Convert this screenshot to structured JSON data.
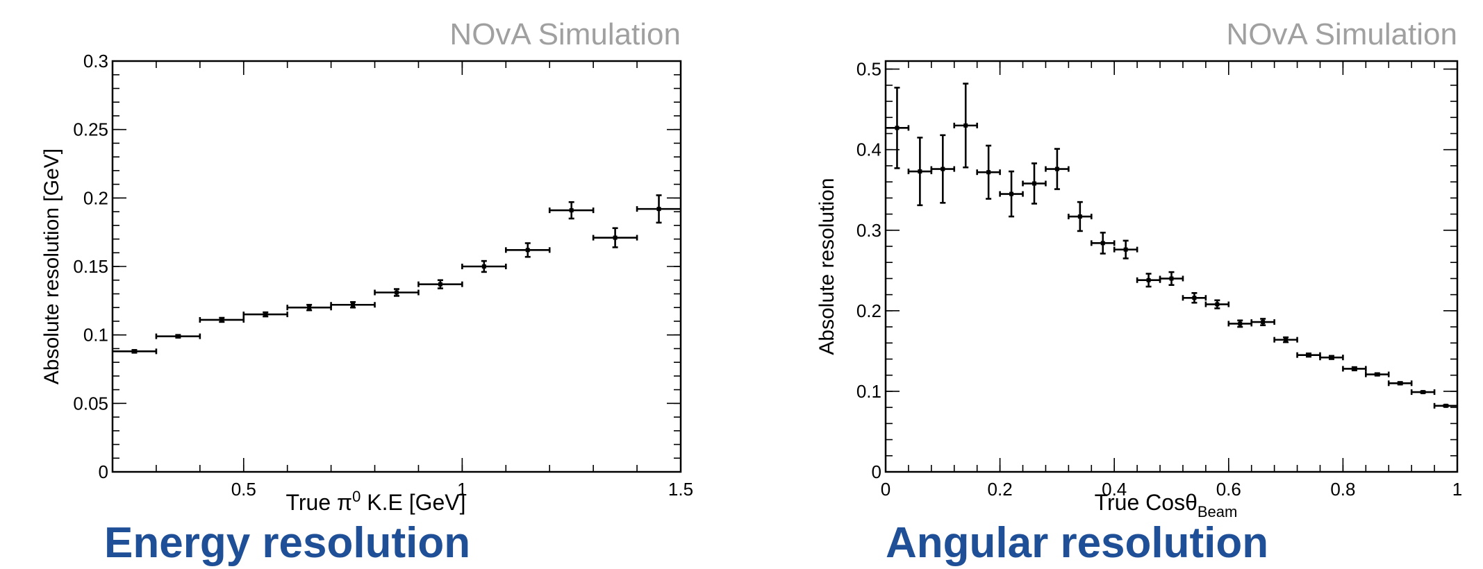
{
  "captions": {
    "left": "Energy resolution",
    "right": "Angular resolution"
  },
  "colors": {
    "caption": "#1f4f96",
    "watermark": "#a0a0a0",
    "marks": "#000000"
  },
  "chart_data": [
    {
      "type": "scatter",
      "style": "error-bars",
      "watermark": "NOvA Simulation",
      "title": "",
      "xlabel": {
        "prefix": "True ",
        "symbol": "π",
        "sup": "0",
        "suffix": " K.E [GeV]"
      },
      "ylabel": "Absolute resolution [GeV]",
      "xlim": [
        0.2,
        1.5
      ],
      "ylim": [
        0,
        0.3
      ],
      "xticks": [
        {
          "value": 0.5,
          "label": "0.5"
        },
        {
          "value": 1,
          "label": "1"
        },
        {
          "value": 1.5,
          "label": "1.5"
        }
      ],
      "yticks": [
        {
          "value": 0,
          "label": "0"
        },
        {
          "value": 0.05,
          "label": "0.05"
        },
        {
          "value": 0.1,
          "label": "0.1"
        },
        {
          "value": 0.15,
          "label": "0.15"
        },
        {
          "value": 0.2,
          "label": "0.2"
        },
        {
          "value": 0.25,
          "label": "0.25"
        },
        {
          "value": 0.3,
          "label": "0.3"
        }
      ],
      "x_minor_step": 0.1,
      "y_minor_step": 0.01,
      "grid": false,
      "points": [
        {
          "x": 0.25,
          "xerr": 0.05,
          "y": 0.088,
          "yerr": 0.001
        },
        {
          "x": 0.35,
          "xerr": 0.05,
          "y": 0.099,
          "yerr": 0.001
        },
        {
          "x": 0.45,
          "xerr": 0.05,
          "y": 0.111,
          "yerr": 0.0015
        },
        {
          "x": 0.55,
          "xerr": 0.05,
          "y": 0.115,
          "yerr": 0.0015
        },
        {
          "x": 0.65,
          "xerr": 0.05,
          "y": 0.12,
          "yerr": 0.002
        },
        {
          "x": 0.75,
          "xerr": 0.05,
          "y": 0.122,
          "yerr": 0.002
        },
        {
          "x": 0.85,
          "xerr": 0.05,
          "y": 0.131,
          "yerr": 0.0025
        },
        {
          "x": 0.95,
          "xerr": 0.05,
          "y": 0.137,
          "yerr": 0.003
        },
        {
          "x": 1.05,
          "xerr": 0.05,
          "y": 0.15,
          "yerr": 0.004
        },
        {
          "x": 1.15,
          "xerr": 0.05,
          "y": 0.162,
          "yerr": 0.005
        },
        {
          "x": 1.25,
          "xerr": 0.05,
          "y": 0.191,
          "yerr": 0.006
        },
        {
          "x": 1.35,
          "xerr": 0.05,
          "y": 0.171,
          "yerr": 0.007
        },
        {
          "x": 1.45,
          "xerr": 0.05,
          "y": 0.192,
          "yerr": 0.01
        }
      ]
    },
    {
      "type": "scatter",
      "style": "error-bars",
      "watermark": "NOvA Simulation",
      "title": "",
      "xlabel": {
        "prefix": "True Cos",
        "symbol": "θ",
        "sub": "Beam"
      },
      "ylabel": "Absolute resolution",
      "xlim": [
        0,
        1
      ],
      "ylim": [
        0,
        0.51
      ],
      "xticks": [
        {
          "value": 0,
          "label": "0"
        },
        {
          "value": 0.2,
          "label": "0.2"
        },
        {
          "value": 0.4,
          "label": "0.4"
        },
        {
          "value": 0.6,
          "label": "0.6"
        },
        {
          "value": 0.8,
          "label": "0.8"
        },
        {
          "value": 1,
          "label": "1"
        }
      ],
      "yticks": [
        {
          "value": 0,
          "label": "0"
        },
        {
          "value": 0.1,
          "label": "0.1"
        },
        {
          "value": 0.2,
          "label": "0.2"
        },
        {
          "value": 0.3,
          "label": "0.3"
        },
        {
          "value": 0.4,
          "label": "0.4"
        },
        {
          "value": 0.5,
          "label": "0.5"
        }
      ],
      "x_minor_step": 0.04,
      "y_minor_step": 0.02,
      "grid": false,
      "points": [
        {
          "x": 0.02,
          "xerr": 0.02,
          "y": 0.427,
          "yerr": 0.05
        },
        {
          "x": 0.06,
          "xerr": 0.02,
          "y": 0.373,
          "yerr": 0.042
        },
        {
          "x": 0.1,
          "xerr": 0.02,
          "y": 0.376,
          "yerr": 0.042
        },
        {
          "x": 0.14,
          "xerr": 0.02,
          "y": 0.43,
          "yerr": 0.052
        },
        {
          "x": 0.18,
          "xerr": 0.02,
          "y": 0.372,
          "yerr": 0.033
        },
        {
          "x": 0.22,
          "xerr": 0.02,
          "y": 0.345,
          "yerr": 0.028
        },
        {
          "x": 0.26,
          "xerr": 0.02,
          "y": 0.358,
          "yerr": 0.025
        },
        {
          "x": 0.3,
          "xerr": 0.02,
          "y": 0.376,
          "yerr": 0.025
        },
        {
          "x": 0.34,
          "xerr": 0.02,
          "y": 0.317,
          "yerr": 0.018
        },
        {
          "x": 0.38,
          "xerr": 0.02,
          "y": 0.284,
          "yerr": 0.013
        },
        {
          "x": 0.42,
          "xerr": 0.02,
          "y": 0.276,
          "yerr": 0.011
        },
        {
          "x": 0.46,
          "xerr": 0.02,
          "y": 0.238,
          "yerr": 0.008
        },
        {
          "x": 0.5,
          "xerr": 0.02,
          "y": 0.24,
          "yerr": 0.008
        },
        {
          "x": 0.54,
          "xerr": 0.02,
          "y": 0.216,
          "yerr": 0.006
        },
        {
          "x": 0.58,
          "xerr": 0.02,
          "y": 0.208,
          "yerr": 0.005
        },
        {
          "x": 0.62,
          "xerr": 0.02,
          "y": 0.184,
          "yerr": 0.004
        },
        {
          "x": 0.66,
          "xerr": 0.02,
          "y": 0.186,
          "yerr": 0.004
        },
        {
          "x": 0.7,
          "xerr": 0.02,
          "y": 0.164,
          "yerr": 0.003
        },
        {
          "x": 0.74,
          "xerr": 0.02,
          "y": 0.145,
          "yerr": 0.002
        },
        {
          "x": 0.78,
          "xerr": 0.02,
          "y": 0.142,
          "yerr": 0.002
        },
        {
          "x": 0.82,
          "xerr": 0.02,
          "y": 0.128,
          "yerr": 0.002
        },
        {
          "x": 0.86,
          "xerr": 0.02,
          "y": 0.121,
          "yerr": 0.0015
        },
        {
          "x": 0.9,
          "xerr": 0.02,
          "y": 0.11,
          "yerr": 0.0015
        },
        {
          "x": 0.94,
          "xerr": 0.02,
          "y": 0.099,
          "yerr": 0.001
        },
        {
          "x": 0.98,
          "xerr": 0.02,
          "y": 0.082,
          "yerr": 0.001
        }
      ]
    }
  ]
}
